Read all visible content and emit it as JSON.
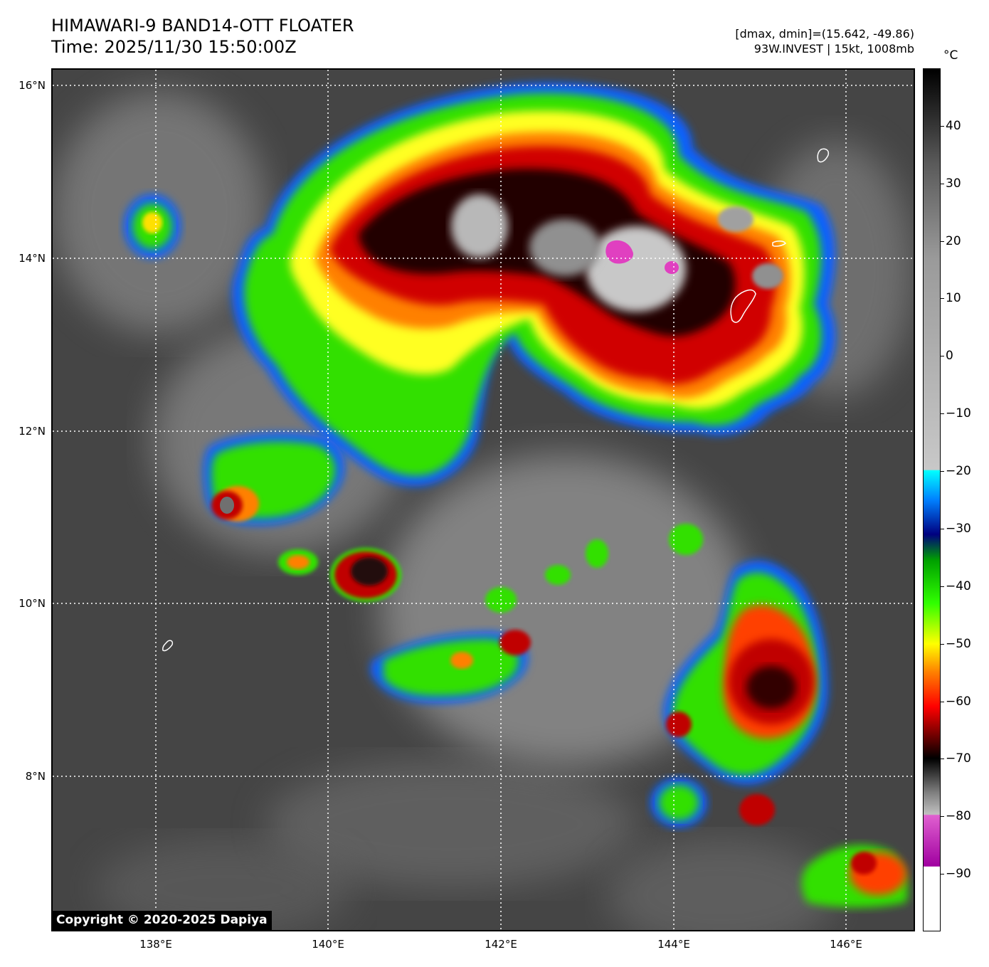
{
  "header": {
    "title_line1": "HIMAWARI-9 BAND14-OTT FLOATER",
    "title_line2": "Time: 2025/11/30 15:50:00Z",
    "info_line1": "[dmax, dmin]=(15.642, -49.86)",
    "info_line2": "93W.INVEST | 15kt, 1008mb"
  },
  "map": {
    "copyright": "Copyright © 2020-2025 Dapiya",
    "lat_labels": [
      "16°N",
      "14°N",
      "12°N",
      "10°N",
      "8°N"
    ],
    "lon_labels": [
      "138°E",
      "140°E",
      "142°E",
      "144°E",
      "146°E"
    ]
  },
  "colorbar": {
    "unit": "°C",
    "ticks": [
      "40",
      "30",
      "20",
      "10",
      "0",
      "−10",
      "−20",
      "−30",
      "−40",
      "−50",
      "−60",
      "−70",
      "−80",
      "−90"
    ],
    "range": [
      -100,
      50
    ]
  },
  "colors": {
    "cold_cloud_core": "#1a0000",
    "deep_red": "#c00000",
    "orange": "#ff8000",
    "yellow": "#ffff00",
    "green": "#40ff00",
    "blue": "#000080",
    "cyan": "#00e0ff",
    "magenta": "#e040c0",
    "ocean_gray": "#454545"
  }
}
